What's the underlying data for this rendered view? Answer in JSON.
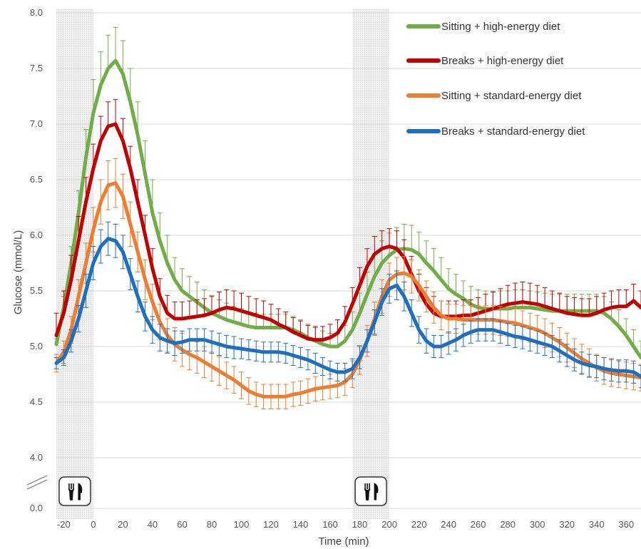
{
  "chart_data": {
    "type": "line",
    "xlabel": "Time (min)",
    "ylabel": "Glucose (mmol/L)",
    "xlim": [
      -25,
      370
    ],
    "ylim": [
      4.0,
      8.0
    ],
    "axis_break": true,
    "y_ticks": [
      "8.0",
      "7.5",
      "7.0",
      "6.5",
      "6.0",
      "5.5",
      "5.0",
      "4.5",
      "4.0"
    ],
    "y_break_tick": "0.0",
    "x_ticks": [
      "-20",
      "0",
      "20",
      "40",
      "60",
      "80",
      "100",
      "120",
      "140",
      "160",
      "180",
      "200",
      "220",
      "240",
      "260",
      "280",
      "300",
      "320",
      "340",
      "360"
    ],
    "grid": "horizontal",
    "legend_position": "top-right",
    "meal_periods": [
      [
        -25,
        0
      ],
      [
        175,
        200
      ]
    ],
    "meal_icon": "fork-knife-icon",
    "x": [
      -25,
      -20,
      -15,
      -10,
      -5,
      0,
      5,
      10,
      15,
      20,
      25,
      30,
      35,
      40,
      45,
      50,
      55,
      60,
      65,
      70,
      75,
      80,
      85,
      90,
      95,
      100,
      105,
      110,
      115,
      120,
      125,
      130,
      135,
      140,
      145,
      150,
      155,
      160,
      165,
      170,
      175,
      180,
      185,
      190,
      195,
      200,
      205,
      210,
      215,
      220,
      225,
      230,
      235,
      240,
      245,
      250,
      255,
      260,
      265,
      270,
      275,
      280,
      285,
      290,
      295,
      300,
      305,
      310,
      315,
      320,
      325,
      330,
      335,
      340,
      345,
      350,
      355,
      360,
      365,
      370
    ],
    "series": [
      {
        "name": "Sitting + high-energy diet",
        "color": "#70ad47",
        "values": [
          5.02,
          5.35,
          5.75,
          6.2,
          6.7,
          7.1,
          7.35,
          7.5,
          7.57,
          7.45,
          7.2,
          6.9,
          6.55,
          6.2,
          5.95,
          5.75,
          5.6,
          5.5,
          5.45,
          5.4,
          5.35,
          5.3,
          5.27,
          5.24,
          5.22,
          5.2,
          5.18,
          5.17,
          5.17,
          5.17,
          5.17,
          5.17,
          5.15,
          5.12,
          5.08,
          5.05,
          5.02,
          5.0,
          5.0,
          5.05,
          5.15,
          5.3,
          5.47,
          5.63,
          5.75,
          5.82,
          5.87,
          5.88,
          5.87,
          5.83,
          5.75,
          5.68,
          5.6,
          5.52,
          5.47,
          5.43,
          5.38,
          5.35,
          5.34,
          5.34,
          5.34,
          5.34,
          5.35,
          5.35,
          5.35,
          5.34,
          5.33,
          5.32,
          5.32,
          5.32,
          5.32,
          5.32,
          5.32,
          5.32,
          5.3,
          5.25,
          5.18,
          5.1,
          5.0,
          4.9
        ],
        "errors": [
          0.05,
          0.1,
          0.15,
          0.2,
          0.25,
          0.3,
          0.3,
          0.3,
          0.3,
          0.3,
          0.3,
          0.3,
          0.3,
          0.3,
          0.25,
          0.25,
          0.2,
          0.2,
          0.18,
          0.18,
          0.16,
          0.16,
          0.15,
          0.15,
          0.14,
          0.14,
          0.13,
          0.13,
          0.12,
          0.12,
          0.12,
          0.12,
          0.12,
          0.12,
          0.12,
          0.12,
          0.12,
          0.12,
          0.12,
          0.14,
          0.16,
          0.18,
          0.2,
          0.2,
          0.2,
          0.2,
          0.2,
          0.22,
          0.22,
          0.2,
          0.2,
          0.2,
          0.2,
          0.18,
          0.18,
          0.16,
          0.16,
          0.16,
          0.16,
          0.16,
          0.16,
          0.16,
          0.16,
          0.16,
          0.15,
          0.15,
          0.15,
          0.15,
          0.15,
          0.15,
          0.15,
          0.15,
          0.15,
          0.15,
          0.15,
          0.15,
          0.15,
          0.15,
          0.15,
          0.15
        ]
      },
      {
        "name": "Breaks + high-energy diet",
        "color": "#c00000",
        "values": [
          5.1,
          5.3,
          5.6,
          5.95,
          6.3,
          6.6,
          6.85,
          6.98,
          7.0,
          6.85,
          6.6,
          6.3,
          6.0,
          5.7,
          5.45,
          5.3,
          5.25,
          5.25,
          5.26,
          5.27,
          5.28,
          5.3,
          5.33,
          5.35,
          5.34,
          5.32,
          5.3,
          5.28,
          5.26,
          5.24,
          5.2,
          5.17,
          5.13,
          5.1,
          5.07,
          5.06,
          5.06,
          5.08,
          5.12,
          5.22,
          5.38,
          5.55,
          5.72,
          5.83,
          5.88,
          5.9,
          5.88,
          5.8,
          5.65,
          5.5,
          5.38,
          5.3,
          5.27,
          5.27,
          5.27,
          5.28,
          5.28,
          5.3,
          5.32,
          5.34,
          5.36,
          5.38,
          5.39,
          5.4,
          5.39,
          5.38,
          5.36,
          5.34,
          5.32,
          5.3,
          5.29,
          5.28,
          5.28,
          5.3,
          5.33,
          5.35,
          5.36,
          5.36,
          5.41,
          5.35
        ],
        "errors": [
          0.2,
          0.2,
          0.22,
          0.22,
          0.22,
          0.22,
          0.22,
          0.22,
          0.22,
          0.2,
          0.2,
          0.2,
          0.18,
          0.18,
          0.16,
          0.16,
          0.15,
          0.15,
          0.15,
          0.15,
          0.15,
          0.15,
          0.16,
          0.16,
          0.16,
          0.16,
          0.15,
          0.15,
          0.15,
          0.14,
          0.14,
          0.14,
          0.13,
          0.13,
          0.12,
          0.12,
          0.12,
          0.12,
          0.12,
          0.14,
          0.15,
          0.16,
          0.16,
          0.16,
          0.16,
          0.16,
          0.16,
          0.16,
          0.16,
          0.15,
          0.15,
          0.15,
          0.14,
          0.14,
          0.14,
          0.14,
          0.14,
          0.14,
          0.15,
          0.15,
          0.16,
          0.17,
          0.18,
          0.18,
          0.18,
          0.17,
          0.17,
          0.16,
          0.16,
          0.15,
          0.15,
          0.15,
          0.15,
          0.15,
          0.15,
          0.15,
          0.15,
          0.15,
          0.15,
          0.15
        ]
      },
      {
        "name": "Sitting + standard-energy diet",
        "color": "#ed7d31",
        "values": [
          4.85,
          4.95,
          5.15,
          5.45,
          5.75,
          6.05,
          6.3,
          6.45,
          6.47,
          6.35,
          6.1,
          5.85,
          5.6,
          5.4,
          5.22,
          5.1,
          5.02,
          4.97,
          4.93,
          4.9,
          4.86,
          4.82,
          4.78,
          4.74,
          4.7,
          4.65,
          4.6,
          4.57,
          4.55,
          4.55,
          4.55,
          4.55,
          4.57,
          4.58,
          4.6,
          4.62,
          4.63,
          4.64,
          4.65,
          4.68,
          4.75,
          4.88,
          5.05,
          5.25,
          5.45,
          5.6,
          5.65,
          5.66,
          5.63,
          5.55,
          5.45,
          5.35,
          5.28,
          5.25,
          5.25,
          5.24,
          5.24,
          5.24,
          5.24,
          5.24,
          5.23,
          5.22,
          5.21,
          5.19,
          5.17,
          5.15,
          5.12,
          5.08,
          5.04,
          4.99,
          4.94,
          4.89,
          4.85,
          4.81,
          4.78,
          4.76,
          4.75,
          4.74,
          4.73,
          4.72
        ],
        "errors": [
          0.08,
          0.1,
          0.12,
          0.15,
          0.18,
          0.2,
          0.2,
          0.22,
          0.22,
          0.2,
          0.2,
          0.18,
          0.18,
          0.16,
          0.16,
          0.15,
          0.15,
          0.15,
          0.14,
          0.14,
          0.14,
          0.13,
          0.13,
          0.12,
          0.12,
          0.12,
          0.12,
          0.11,
          0.11,
          0.11,
          0.11,
          0.11,
          0.11,
          0.11,
          0.11,
          0.11,
          0.11,
          0.11,
          0.11,
          0.12,
          0.12,
          0.13,
          0.14,
          0.15,
          0.15,
          0.15,
          0.15,
          0.15,
          0.15,
          0.14,
          0.14,
          0.14,
          0.13,
          0.13,
          0.13,
          0.13,
          0.13,
          0.13,
          0.13,
          0.13,
          0.13,
          0.13,
          0.13,
          0.13,
          0.13,
          0.13,
          0.13,
          0.13,
          0.13,
          0.13,
          0.13,
          0.13,
          0.13,
          0.12,
          0.12,
          0.12,
          0.12,
          0.12,
          0.12,
          0.12
        ]
      },
      {
        "name": "Breaks + standard-energy diet",
        "color": "#1f6fbf",
        "values": [
          4.85,
          4.9,
          5.05,
          5.25,
          5.5,
          5.75,
          5.9,
          5.97,
          5.95,
          5.85,
          5.65,
          5.45,
          5.27,
          5.15,
          5.08,
          5.05,
          5.03,
          5.04,
          5.06,
          5.06,
          5.06,
          5.04,
          5.02,
          5.0,
          4.99,
          4.98,
          4.97,
          4.96,
          4.95,
          4.95,
          4.95,
          4.94,
          4.92,
          4.9,
          4.88,
          4.85,
          4.82,
          4.79,
          4.77,
          4.77,
          4.8,
          4.9,
          5.05,
          5.22,
          5.4,
          5.52,
          5.55,
          5.45,
          5.3,
          5.15,
          5.05,
          5.0,
          5.0,
          5.03,
          5.06,
          5.1,
          5.13,
          5.15,
          5.15,
          5.15,
          5.13,
          5.11,
          5.09,
          5.08,
          5.06,
          5.04,
          5.02,
          5.0,
          4.96,
          4.92,
          4.88,
          4.85,
          4.83,
          4.82,
          4.8,
          4.79,
          4.78,
          4.78,
          4.77,
          4.73
        ],
        "errors": [
          0.05,
          0.07,
          0.1,
          0.12,
          0.15,
          0.15,
          0.15,
          0.15,
          0.15,
          0.15,
          0.14,
          0.14,
          0.13,
          0.12,
          0.12,
          0.11,
          0.11,
          0.1,
          0.1,
          0.1,
          0.1,
          0.1,
          0.1,
          0.1,
          0.1,
          0.09,
          0.09,
          0.09,
          0.09,
          0.09,
          0.09,
          0.09,
          0.09,
          0.09,
          0.09,
          0.09,
          0.08,
          0.08,
          0.08,
          0.08,
          0.09,
          0.1,
          0.1,
          0.11,
          0.12,
          0.13,
          0.13,
          0.13,
          0.12,
          0.12,
          0.11,
          0.1,
          0.1,
          0.1,
          0.1,
          0.1,
          0.1,
          0.1,
          0.1,
          0.1,
          0.1,
          0.1,
          0.1,
          0.1,
          0.1,
          0.1,
          0.1,
          0.1,
          0.1,
          0.1,
          0.1,
          0.1,
          0.1,
          0.1,
          0.1,
          0.1,
          0.1,
          0.1,
          0.1,
          0.1
        ]
      }
    ]
  }
}
